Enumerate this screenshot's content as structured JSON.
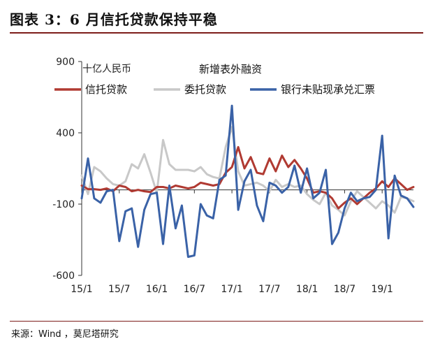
{
  "figure": {
    "title": "图表 3：6 月信托贷款保持平稳",
    "source": "来源：Wind ，莫尼塔研究"
  },
  "chart_data": {
    "type": "line",
    "title": "新增表外融资",
    "ylabel": "十亿人民币",
    "ylim": [
      -600,
      900
    ],
    "yticks": [
      900,
      400,
      -100,
      -600
    ],
    "ytick_labels": [
      "900",
      "400",
      "-100",
      "-600"
    ],
    "x_tick_labels": [
      "15/1",
      "15/7",
      "16/1",
      "16/7",
      "17/1",
      "17/7",
      "18/1",
      "18/7",
      "19/1"
    ],
    "x_tick_index": [
      0,
      6,
      12,
      18,
      24,
      30,
      36,
      42,
      48
    ],
    "x": [
      "15/1",
      "15/2",
      "15/3",
      "15/4",
      "15/5",
      "15/6",
      "15/7",
      "15/8",
      "15/9",
      "15/10",
      "15/11",
      "15/12",
      "16/1",
      "16/2",
      "16/3",
      "16/4",
      "16/5",
      "16/6",
      "16/7",
      "16/8",
      "16/9",
      "16/10",
      "16/11",
      "16/12",
      "17/1",
      "17/2",
      "17/3",
      "17/4",
      "17/5",
      "17/6",
      "17/7",
      "17/8",
      "17/9",
      "17/10",
      "17/11",
      "17/12",
      "18/1",
      "18/2",
      "18/3",
      "18/4",
      "18/5",
      "18/6",
      "18/7",
      "18/8",
      "18/9",
      "18/10",
      "18/11",
      "18/12",
      "19/1",
      "19/2",
      "19/3",
      "19/4",
      "19/5",
      "19/6"
    ],
    "series": [
      {
        "name": "信托贷款",
        "color": "#b03a32",
        "values": [
          30,
          5,
          5,
          0,
          10,
          -10,
          30,
          20,
          -10,
          0,
          -10,
          -15,
          20,
          20,
          10,
          30,
          20,
          10,
          20,
          50,
          40,
          30,
          40,
          120,
          160,
          300,
          150,
          230,
          120,
          110,
          220,
          130,
          240,
          160,
          210,
          150,
          80,
          -20,
          -10,
          -20,
          -60,
          -130,
          -90,
          -60,
          -100,
          -60,
          -20,
          10,
          60,
          20,
          80,
          40,
          0,
          20
        ]
      },
      {
        "name": "委托贷款",
        "color": "#c8c8c8",
        "values": [
          100,
          -30,
          160,
          130,
          80,
          40,
          30,
          60,
          180,
          150,
          250,
          120,
          -20,
          350,
          180,
          140,
          140,
          140,
          130,
          160,
          110,
          90,
          80,
          300,
          440,
          130,
          30,
          40,
          50,
          30,
          -10,
          70,
          20,
          40,
          20,
          30,
          -30,
          -70,
          -100,
          -20,
          -110,
          -140,
          -180,
          -80,
          -10,
          -50,
          -90,
          -130,
          -80,
          -110,
          -160,
          -50,
          -60,
          -80
        ]
      },
      {
        "name": "银行未贴现承兑汇票",
        "color": "#3a62a7",
        "values": [
          -60,
          220,
          -60,
          -90,
          -10,
          0,
          -360,
          -150,
          -130,
          -400,
          -140,
          -30,
          -20,
          -380,
          30,
          -270,
          -110,
          -470,
          -460,
          -100,
          -180,
          -200,
          70,
          100,
          590,
          -140,
          60,
          140,
          -110,
          -220,
          50,
          30,
          -20,
          20,
          170,
          -20,
          150,
          -60,
          -20,
          140,
          -380,
          -300,
          -130,
          -20,
          -80,
          -60,
          -50,
          0,
          380,
          -340,
          100,
          -40,
          -60,
          -120
        ]
      }
    ],
    "grid": false,
    "legend": "top"
  }
}
